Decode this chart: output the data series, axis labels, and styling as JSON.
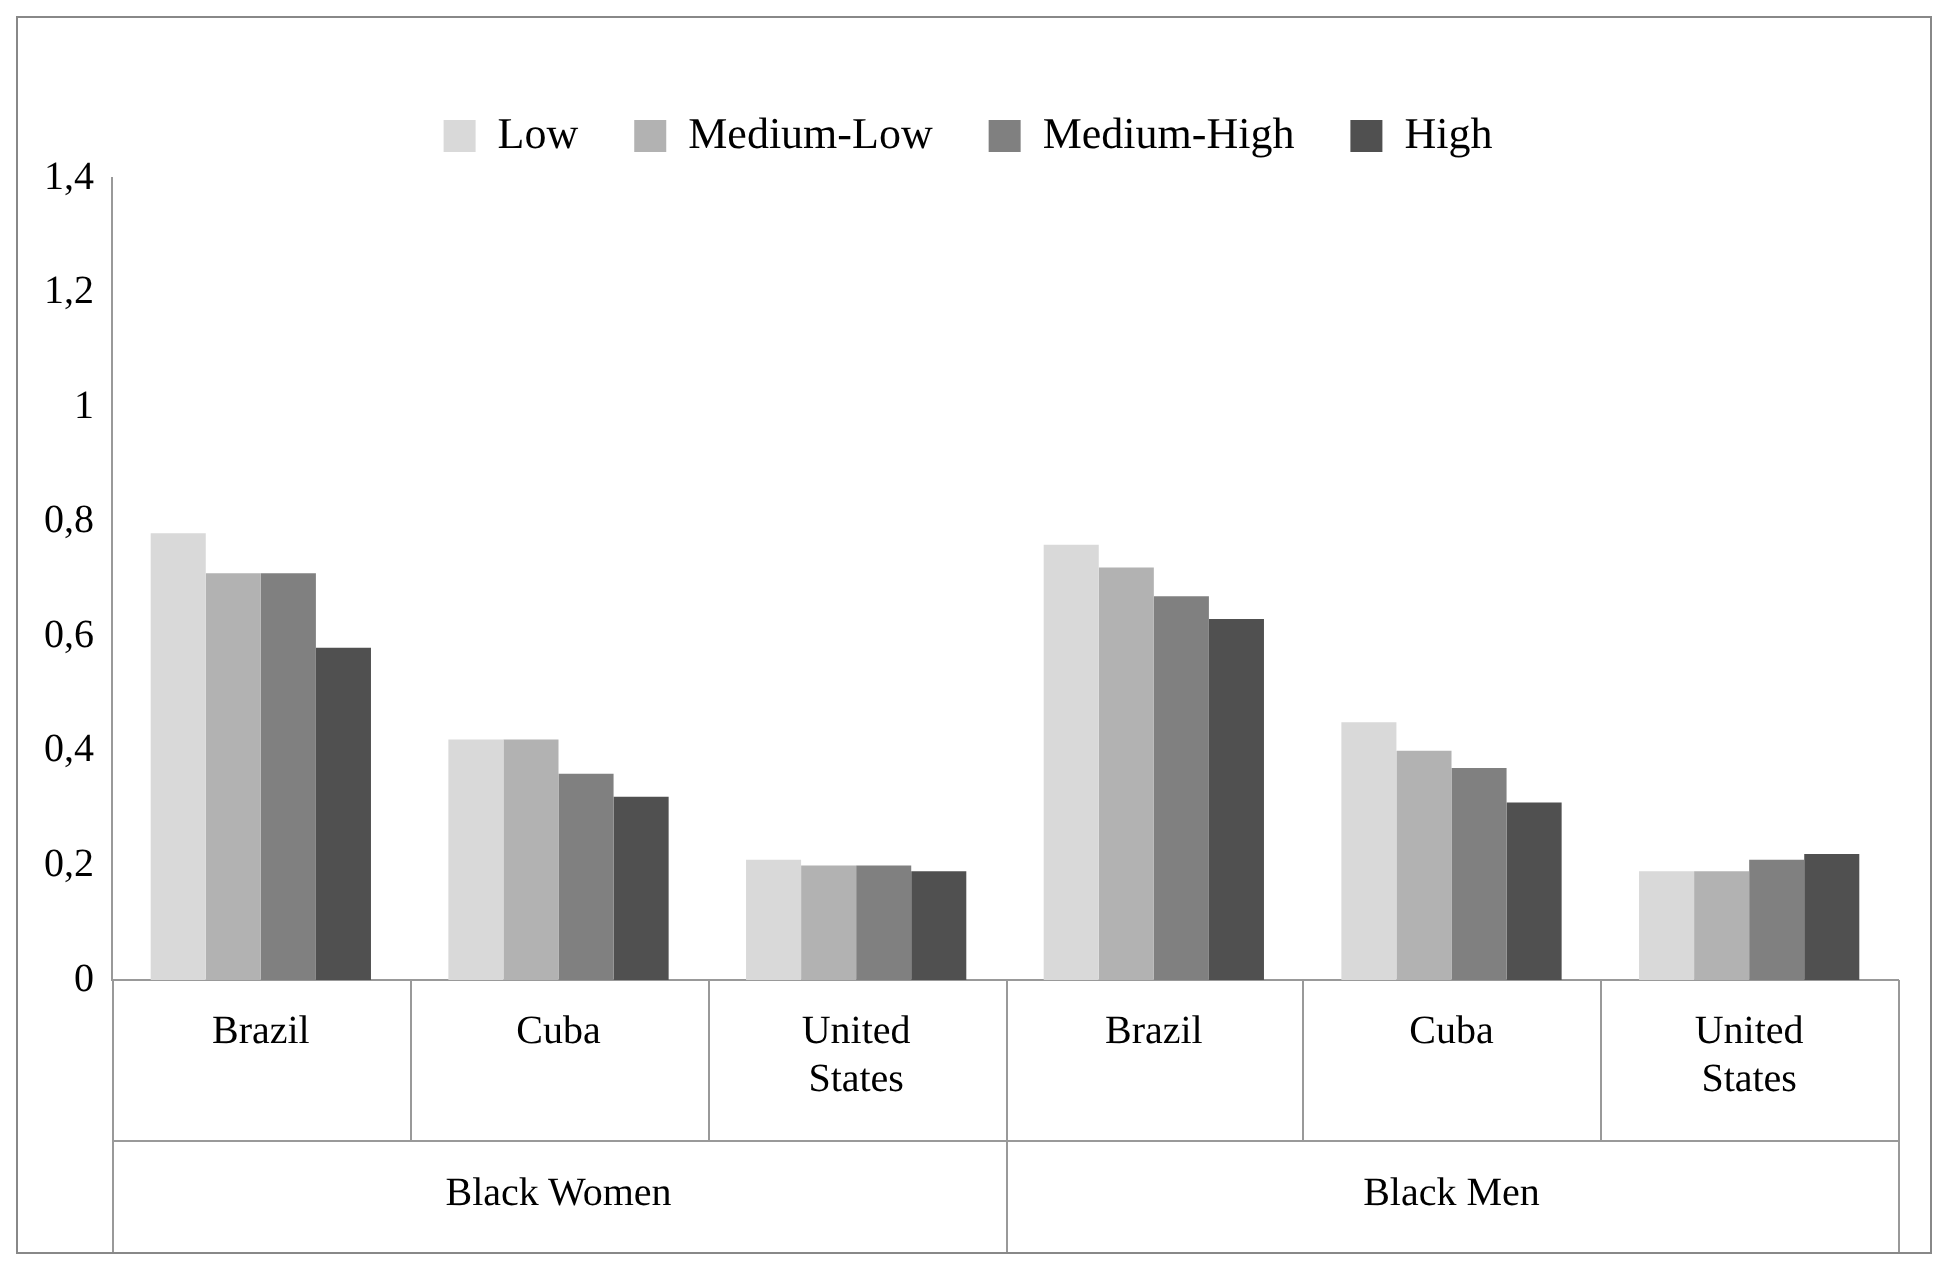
{
  "chart_data": {
    "type": "bar",
    "categories": [
      "Brazil",
      "Cuba",
      "United States",
      "Brazil",
      "Cuba",
      "United States"
    ],
    "series": [
      {
        "name": "Low",
        "color": "#d9d9d9",
        "values": [
          0.78,
          0.42,
          0.21,
          0.76,
          0.45,
          0.19
        ]
      },
      {
        "name": "Medium-Low",
        "color": "#b2b2b2",
        "values": [
          0.71,
          0.42,
          0.2,
          0.72,
          0.4,
          0.19
        ]
      },
      {
        "name": "Medium-High",
        "color": "#808080",
        "values": [
          0.71,
          0.36,
          0.2,
          0.67,
          0.37,
          0.21
        ]
      },
      {
        "name": "High",
        "color": "#505050",
        "values": [
          0.58,
          0.32,
          0.19,
          0.63,
          0.31,
          0.22
        ]
      }
    ],
    "annotations": [
      "Black Women",
      "Black Men"
    ],
    "ylim": [
      0,
      1.4
    ],
    "yticks": [
      0,
      {
        "value": 0.2,
        "label": "0,2"
      },
      {
        "value": 0.4,
        "label": "0,4"
      },
      {
        "value": 0.6,
        "label": "0,6"
      },
      {
        "value": 0.8,
        "label": "0,8"
      },
      1,
      {
        "value": 1.2,
        "label": "1,2"
      },
      {
        "value": 1.4,
        "label": "1,4"
      }
    ],
    "grid": false,
    "legend": "top"
  }
}
